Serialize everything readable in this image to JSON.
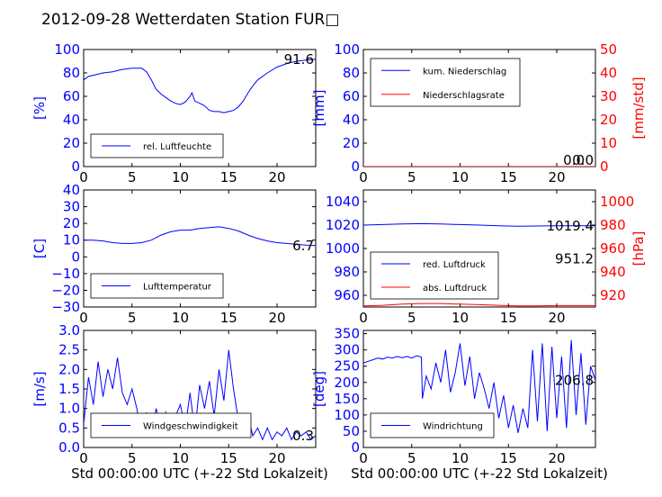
{
  "title": "2012-09-28 Wetterdaten Station FUR□",
  "colors": {
    "blue": "#0000ff",
    "red": "#ff0000",
    "black": "#000000"
  },
  "chart_data": [
    {
      "id": "humidity",
      "type": "line",
      "ylabel": "[%]",
      "xlim": [
        0,
        24
      ],
      "ylim": [
        0,
        100
      ],
      "xticks": [
        "0",
        "5",
        "10",
        "15",
        "20"
      ],
      "yticks": [
        "0",
        "20",
        "40",
        "60",
        "80",
        "100"
      ],
      "annotation": "91.6",
      "legend": "bottom-left",
      "series": [
        {
          "name": "rel. Luftfeuchte",
          "color": "blue",
          "x": [
            0,
            0.5,
            1,
            2,
            3,
            4,
            5,
            6,
            6.5,
            7,
            7.5,
            8,
            8.5,
            9,
            9.5,
            10,
            10.5,
            11,
            11.2,
            11.5,
            12,
            12.5,
            13,
            13.5,
            14,
            14.5,
            15,
            15.5,
            16,
            16.5,
            17,
            17.5,
            18,
            19,
            20,
            21,
            22,
            23,
            24
          ],
          "y": [
            74,
            77,
            78,
            80,
            81,
            83,
            84,
            84,
            81,
            74,
            66,
            62,
            59,
            56,
            54,
            53,
            55,
            60,
            63,
            56,
            54,
            52,
            48,
            47,
            47,
            46,
            47,
            48,
            51,
            56,
            63,
            69,
            74,
            80,
            85,
            88,
            90,
            91,
            91.6
          ]
        }
      ]
    },
    {
      "id": "precip",
      "type": "line",
      "ylabel": "[mm]",
      "ylabel_right": "[mm/std]",
      "xlim": [
        0,
        24
      ],
      "ylim": [
        0,
        100
      ],
      "ylim_right": [
        0,
        50
      ],
      "xticks": [
        "0",
        "5",
        "10",
        "15",
        "20"
      ],
      "yticks": [
        "0",
        "20",
        "40",
        "60",
        "80",
        "100"
      ],
      "yticks_right": [
        "0",
        "10",
        "20",
        "30",
        "40",
        "50"
      ],
      "annotation": "0.0",
      "annotation_second": "0.0",
      "legend": "top-left",
      "series": [
        {
          "name": "kum. Niederschlag",
          "color": "blue",
          "x": [
            0,
            24
          ],
          "y": [
            0,
            0
          ]
        },
        {
          "name": "Niederschlagsrate",
          "color": "red",
          "x": [
            0,
            24
          ],
          "y": [
            0,
            0
          ]
        }
      ]
    },
    {
      "id": "temperature",
      "type": "line",
      "ylabel": "[C]",
      "xlim": [
        0,
        24
      ],
      "ylim": [
        -30,
        40
      ],
      "xticks": [
        "0",
        "5",
        "10",
        "15",
        "20"
      ],
      "yticks": [
        "−30",
        "−20",
        "−10",
        "0",
        "10",
        "20",
        "30",
        "40"
      ],
      "annotation": "6.7",
      "legend": "bottom-left",
      "series": [
        {
          "name": "Lufttemperatur",
          "color": "blue",
          "x": [
            0,
            1,
            2,
            3,
            4,
            5,
            6,
            7,
            8,
            9,
            10,
            11,
            12,
            13,
            14,
            15,
            16,
            17,
            18,
            19,
            20,
            21,
            22,
            23,
            24
          ],
          "y": [
            10,
            10,
            9.5,
            8.5,
            8,
            8,
            8.5,
            10,
            13,
            15,
            16,
            16,
            17,
            17.5,
            18,
            17,
            15.5,
            13,
            11,
            9.5,
            8.5,
            8,
            7.5,
            7,
            6.7
          ]
        }
      ]
    },
    {
      "id": "pressure",
      "type": "line",
      "ylabel_right": "[hPa]",
      "xlim": [
        0,
        24
      ],
      "ylim": [
        950,
        1050
      ],
      "ylim_right": [
        910,
        1010
      ],
      "xticks": [
        "0",
        "5",
        "10",
        "15",
        "20"
      ],
      "yticks": [
        "960",
        "980",
        "1000",
        "1020",
        "1040"
      ],
      "yticks_right": [
        "920",
        "940",
        "960",
        "980",
        "1000"
      ],
      "annotation": "1019.4",
      "annotation_second": "951.2",
      "legend": "bottom-left",
      "series": [
        {
          "name": "red. Luftdruck",
          "color": "blue",
          "x": [
            0,
            2,
            4,
            6,
            8,
            10,
            12,
            14,
            16,
            18,
            20,
            22,
            24
          ],
          "y": [
            1020,
            1020.5,
            1021,
            1021.2,
            1021,
            1020.5,
            1020,
            1019.5,
            1019,
            1019.2,
            1019.5,
            1019.4,
            1019.4
          ]
        },
        {
          "name": "abs. Luftdruck",
          "color": "red",
          "x": [
            0,
            2,
            4,
            6,
            8,
            10,
            12,
            14,
            16,
            18,
            20,
            22,
            24
          ],
          "y": [
            951,
            951.5,
            952.5,
            953,
            953,
            952.5,
            952,
            951.5,
            951,
            951,
            951.2,
            951.2,
            951.2
          ]
        }
      ]
    },
    {
      "id": "wind",
      "type": "line",
      "ylabel": "[m/s]",
      "xlabel": "Std 00:00:00 UTC (+-22 Std Lokalzeit)",
      "xlim": [
        0,
        24
      ],
      "ylim": [
        0,
        3
      ],
      "xticks": [
        "0",
        "5",
        "10",
        "15",
        "20"
      ],
      "yticks": [
        "0.0",
        "0.5",
        "1.0",
        "1.5",
        "2.0",
        "2.5",
        "3.0"
      ],
      "annotation": "0.3",
      "legend": "bottom-left",
      "series": [
        {
          "name": "Windgeschwindigkeit",
          "color": "blue",
          "x": [
            0,
            0.5,
            1,
            1.5,
            2,
            2.5,
            3,
            3.5,
            4,
            4.5,
            5,
            5.5,
            6,
            6.5,
            7,
            7.5,
            8,
            8.5,
            9,
            9.5,
            10,
            10.5,
            11,
            11.5,
            12,
            12.5,
            13,
            13.5,
            14,
            14.5,
            15,
            15.5,
            16,
            16.5,
            17,
            17.5,
            18,
            18.5,
            19,
            19.5,
            20,
            20.5,
            21,
            21.5,
            22,
            22.5,
            23,
            23.5,
            24
          ],
          "y": [
            0.6,
            1.8,
            1.1,
            2.2,
            1.3,
            2.0,
            1.5,
            2.3,
            1.4,
            1.1,
            1.5,
            1.0,
            0.3,
            0.9,
            0.4,
            1.0,
            0.5,
            0.9,
            0.4,
            0.8,
            1.1,
            0.5,
            1.4,
            0.4,
            1.6,
            1.0,
            1.7,
            0.8,
            2.0,
            1.2,
            2.5,
            1.5,
            0.7,
            0.4,
            0.8,
            0.3,
            0.5,
            0.2,
            0.5,
            0.2,
            0.4,
            0.3,
            0.5,
            0.2,
            0.4,
            0.3,
            0.4,
            0.2,
            0.3
          ]
        }
      ]
    },
    {
      "id": "winddir",
      "type": "line",
      "ylabel": "[deg]",
      "xlabel": "Std 00:00:00 UTC (+-22 Std Lokalzeit)",
      "xlim": [
        0,
        24
      ],
      "ylim": [
        0,
        360
      ],
      "xticks": [
        "0",
        "5",
        "10",
        "15",
        "20"
      ],
      "yticks": [
        "0",
        "50",
        "100",
        "150",
        "200",
        "250",
        "300",
        "350"
      ],
      "annotation": "206.8",
      "legend": "bottom-left",
      "series": [
        {
          "name": "Windrichtung",
          "color": "blue",
          "x": [
            0,
            0.5,
            1,
            1.5,
            2,
            2.5,
            3,
            3.5,
            4,
            4.5,
            5,
            5.5,
            6,
            6.1,
            6.5,
            7,
            7.5,
            8,
            8.5,
            9,
            9.5,
            10,
            10.5,
            11,
            11.5,
            12,
            12.5,
            13,
            13.5,
            14,
            14.5,
            15,
            15.5,
            16,
            16.5,
            17,
            17.5,
            18,
            18.5,
            19,
            19.5,
            20,
            20.5,
            21,
            21.5,
            22,
            22.5,
            23,
            23.5,
            24
          ],
          "y": [
            260,
            265,
            270,
            275,
            272,
            278,
            275,
            280,
            276,
            280,
            275,
            282,
            278,
            150,
            220,
            180,
            260,
            200,
            300,
            170,
            230,
            320,
            190,
            280,
            150,
            230,
            180,
            120,
            200,
            90,
            160,
            60,
            130,
            45,
            120,
            60,
            300,
            80,
            320,
            50,
            310,
            90,
            280,
            60,
            330,
            100,
            290,
            70,
            250,
            207
          ]
        }
      ]
    }
  ]
}
